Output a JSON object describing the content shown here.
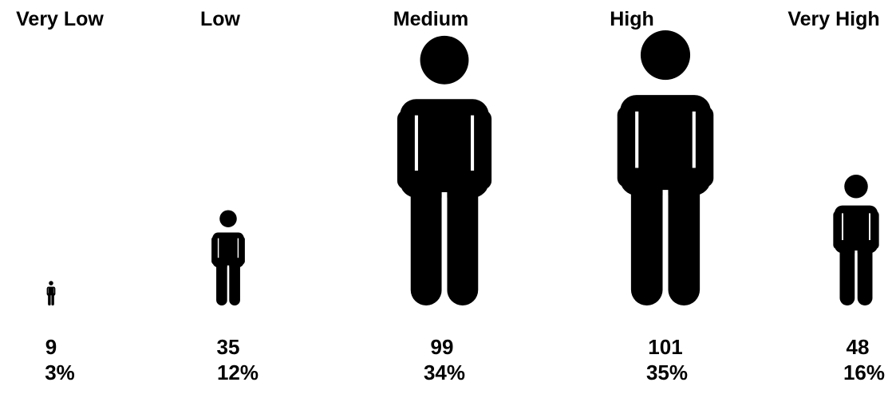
{
  "chart_data": {
    "type": "pictograph",
    "categories": [
      "Very Low",
      "Low",
      "Medium",
      "High",
      "Very High"
    ],
    "values": [
      9,
      35,
      99,
      101,
      48
    ],
    "percentages": [
      "3%",
      "12%",
      "34%",
      "35%",
      "16%"
    ],
    "counts_text": [
      "9",
      "35",
      "99",
      "101",
      "48"
    ],
    "icon": "person-icon",
    "colors": {
      "figure": "#000000",
      "background": "#ffffff"
    }
  }
}
